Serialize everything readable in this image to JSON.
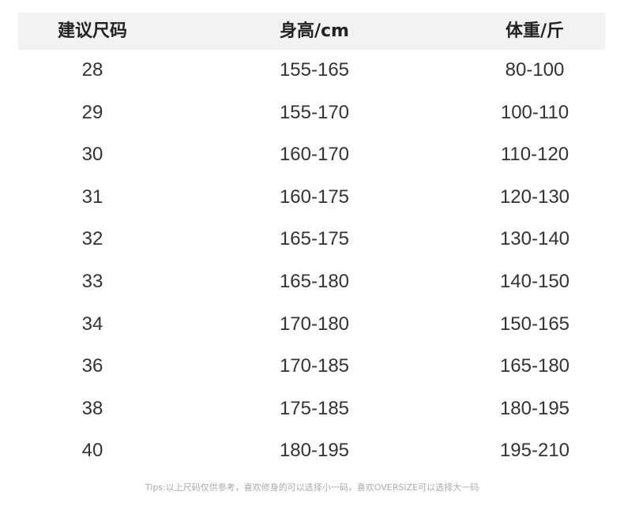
{
  "table": {
    "headers": [
      "建议尺码",
      "身高/cm",
      "体重/斤"
    ],
    "rows": [
      [
        "28",
        "155-165",
        "80-100"
      ],
      [
        "29",
        "155-170",
        "100-110"
      ],
      [
        "30",
        "160-170",
        "110-120"
      ],
      [
        "31",
        "160-175",
        "120-130"
      ],
      [
        "32",
        "165-175",
        "130-140"
      ],
      [
        "33",
        "165-180",
        "140-150"
      ],
      [
        "34",
        "170-180",
        "150-165"
      ],
      [
        "36",
        "170-185",
        "165-180"
      ],
      [
        "38",
        "175-185",
        "180-195"
      ],
      [
        "40",
        "180-195",
        "195-210"
      ]
    ]
  },
  "tips": "Tips:以上尺码仅供参考，喜欢修身的可以选择小一码，喜欢OVERSIZE可以选择大一码",
  "colors": {
    "header_bg": "#f2f2f2",
    "text": "#333333",
    "tips": "#aaaaaa"
  }
}
